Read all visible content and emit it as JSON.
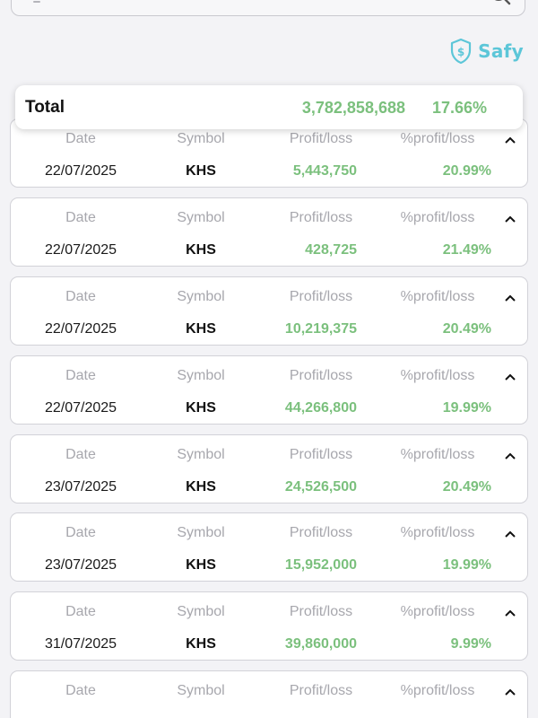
{
  "search": {
    "placeholder": ""
  },
  "brand": {
    "name": "Safy",
    "color": "#5cc6d8",
    "icon": "shield-dollar-icon"
  },
  "total": {
    "label": "Total",
    "amount": "3,782,858,688",
    "percent": "17.66%"
  },
  "columns": {
    "date": "Date",
    "symbol": "Symbol",
    "profit_loss": "Profit/loss",
    "percent_profit_loss": "%profit/loss"
  },
  "colors": {
    "gain": "#7bc07d",
    "header_text": "#a7a7ad",
    "background": "#f3f3f6"
  },
  "rows": [
    {
      "date": "22/07/2025",
      "symbol": "KHS",
      "profit_loss": "5,443,750",
      "percent": "20.99%"
    },
    {
      "date": "22/07/2025",
      "symbol": "KHS",
      "profit_loss": "428,725",
      "percent": "21.49%"
    },
    {
      "date": "22/07/2025",
      "symbol": "KHS",
      "profit_loss": "10,219,375",
      "percent": "20.49%"
    },
    {
      "date": "22/07/2025",
      "symbol": "KHS",
      "profit_loss": "44,266,800",
      "percent": "19.99%"
    },
    {
      "date": "23/07/2025",
      "symbol": "KHS",
      "profit_loss": "24,526,500",
      "percent": "20.49%"
    },
    {
      "date": "23/07/2025",
      "symbol": "KHS",
      "profit_loss": "15,952,000",
      "percent": "19.99%"
    },
    {
      "date": "31/07/2025",
      "symbol": "KHS",
      "profit_loss": "39,860,000",
      "percent": "9.99%"
    },
    {
      "date": "",
      "symbol": "",
      "profit_loss": "",
      "percent": ""
    }
  ]
}
